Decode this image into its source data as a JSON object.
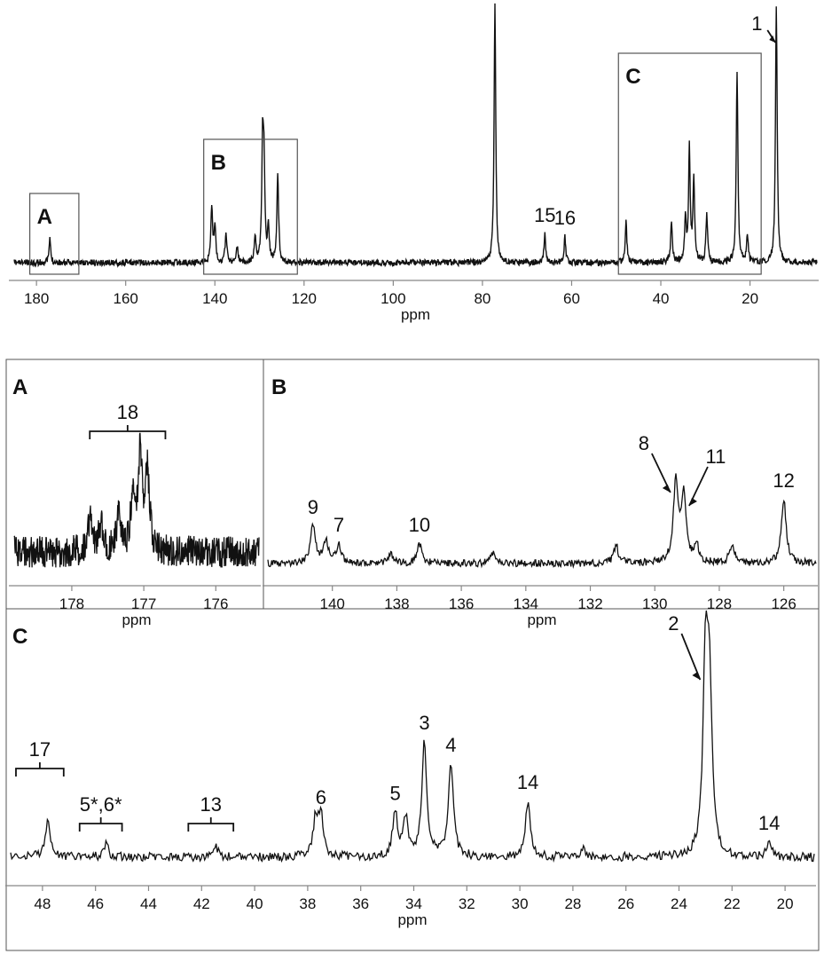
{
  "chart_data": [
    {
      "id": "full",
      "type": "line",
      "title": "",
      "xlabel": "ppm",
      "ylabel": "",
      "xlim": [
        185,
        5
      ],
      "reversed_x": true,
      "ticks": [
        "180",
        "160",
        "140",
        "120",
        "100",
        "80",
        "60",
        "40",
        "20"
      ],
      "tick_values": [
        180,
        160,
        140,
        120,
        100,
        80,
        60,
        40,
        20
      ],
      "peaks": [
        {
          "ppm": 177.0,
          "h": 0.09
        },
        {
          "ppm": 140.7,
          "h": 0.22
        },
        {
          "ppm": 140.0,
          "h": 0.14
        },
        {
          "ppm": 137.5,
          "h": 0.12
        },
        {
          "ppm": 135.0,
          "h": 0.06
        },
        {
          "ppm": 131.0,
          "h": 0.1
        },
        {
          "ppm": 129.3,
          "h": 0.42
        },
        {
          "ppm": 129.0,
          "h": 0.36
        },
        {
          "ppm": 128.0,
          "h": 0.14
        },
        {
          "ppm": 125.9,
          "h": 0.35
        },
        {
          "ppm": 77.2,
          "h": 1.0
        },
        {
          "ppm": 66.0,
          "h": 0.11
        },
        {
          "ppm": 61.5,
          "h": 0.1
        },
        {
          "ppm": 47.8,
          "h": 0.16
        },
        {
          "ppm": 37.6,
          "h": 0.16
        },
        {
          "ppm": 34.5,
          "h": 0.17
        },
        {
          "ppm": 33.6,
          "h": 0.44
        },
        {
          "ppm": 32.6,
          "h": 0.33
        },
        {
          "ppm": 29.7,
          "h": 0.19
        },
        {
          "ppm": 22.9,
          "h": 0.75
        },
        {
          "ppm": 20.6,
          "h": 0.11
        },
        {
          "ppm": 14.1,
          "h": 1.0
        }
      ],
      "labels": [
        {
          "text": "15",
          "ppm": 66.0
        },
        {
          "text": "16",
          "ppm": 61.5
        },
        {
          "text": "1",
          "ppm": 14.1
        }
      ],
      "regions": [
        {
          "letter": "A",
          "from": 181.5,
          "to": 170.5
        },
        {
          "letter": "B",
          "from": 142.5,
          "to": 121.5
        },
        {
          "letter": "C",
          "from": 49.5,
          "to": 17.5
        }
      ]
    },
    {
      "id": "A",
      "type": "line",
      "title": "A",
      "xlabel": "ppm",
      "xlim": [
        178.8,
        175.4
      ],
      "reversed_x": true,
      "ticks": [
        "178",
        "177",
        "176"
      ],
      "tick_values": [
        178,
        177,
        176
      ],
      "peaks": [
        {
          "ppm": 177.75,
          "h": 0.3
        },
        {
          "ppm": 177.6,
          "h": 0.25
        },
        {
          "ppm": 177.35,
          "h": 0.3
        },
        {
          "ppm": 177.15,
          "h": 0.55
        },
        {
          "ppm": 177.05,
          "h": 0.85
        },
        {
          "ppm": 176.95,
          "h": 0.7
        }
      ],
      "labels": [
        {
          "text": "18",
          "bracket": [
            177.75,
            176.7
          ]
        }
      ]
    },
    {
      "id": "B",
      "type": "line",
      "title": "B",
      "xlabel": "ppm",
      "xlim": [
        142.0,
        125.0
      ],
      "reversed_x": true,
      "ticks": [
        "140",
        "138",
        "136",
        "134",
        "132",
        "130",
        "128",
        "126"
      ],
      "tick_values": [
        140,
        138,
        136,
        134,
        132,
        130,
        128,
        126
      ],
      "peaks": [
        {
          "ppm": 140.6,
          "h": 0.42
        },
        {
          "ppm": 140.2,
          "h": 0.25
        },
        {
          "ppm": 139.8,
          "h": 0.22
        },
        {
          "ppm": 138.2,
          "h": 0.1
        },
        {
          "ppm": 137.3,
          "h": 0.22
        },
        {
          "ppm": 135.0,
          "h": 0.12
        },
        {
          "ppm": 131.2,
          "h": 0.2
        },
        {
          "ppm": 129.35,
          "h": 0.9
        },
        {
          "ppm": 129.1,
          "h": 0.75
        },
        {
          "ppm": 128.7,
          "h": 0.18
        },
        {
          "ppm": 127.6,
          "h": 0.22
        },
        {
          "ppm": 126.0,
          "h": 0.72
        }
      ],
      "labels": [
        {
          "text": "9",
          "ppm": 140.6
        },
        {
          "text": "7",
          "ppm": 139.8
        },
        {
          "text": "10",
          "ppm": 137.3
        },
        {
          "text": "8",
          "ppm": 129.35,
          "arrow": true
        },
        {
          "text": "11",
          "ppm": 129.1,
          "arrow": true
        },
        {
          "text": "12",
          "ppm": 126.0
        }
      ]
    },
    {
      "id": "C",
      "type": "line",
      "title": "C",
      "xlabel": "ppm",
      "xlim": [
        49.2,
        18.9
      ],
      "reversed_x": true,
      "ticks": [
        "48",
        "46",
        "44",
        "42",
        "40",
        "38",
        "36",
        "34",
        "32",
        "30",
        "28",
        "26",
        "24",
        "22",
        "20"
      ],
      "tick_values": [
        48,
        46,
        44,
        42,
        40,
        38,
        36,
        34,
        32,
        30,
        28,
        26,
        24,
        22,
        20
      ],
      "peaks": [
        {
          "ppm": 47.8,
          "h": 0.2
        },
        {
          "ppm": 45.6,
          "h": 0.07
        },
        {
          "ppm": 41.5,
          "h": 0.07
        },
        {
          "ppm": 37.7,
          "h": 0.2
        },
        {
          "ppm": 37.5,
          "h": 0.22
        },
        {
          "ppm": 34.7,
          "h": 0.24
        },
        {
          "ppm": 34.3,
          "h": 0.2
        },
        {
          "ppm": 33.6,
          "h": 0.62
        },
        {
          "ppm": 32.6,
          "h": 0.5
        },
        {
          "ppm": 29.7,
          "h": 0.3
        },
        {
          "ppm": 27.6,
          "h": 0.05
        },
        {
          "ppm": 23.0,
          "h": 1.0
        },
        {
          "ppm": 22.85,
          "h": 0.85
        },
        {
          "ppm": 20.6,
          "h": 0.08
        }
      ],
      "labels": [
        {
          "text": "17",
          "bracket": [
            49.0,
            47.2
          ]
        },
        {
          "text": "5*,6*",
          "bracket": [
            46.6,
            45.0
          ]
        },
        {
          "text": "13",
          "bracket": [
            42.5,
            40.8
          ]
        },
        {
          "text": "6",
          "ppm": 37.5
        },
        {
          "text": "5",
          "ppm": 34.7
        },
        {
          "text": "3",
          "ppm": 33.6
        },
        {
          "text": "4",
          "ppm": 32.6
        },
        {
          "text": "14",
          "ppm": 29.7
        },
        {
          "text": "2",
          "ppm": 23.0,
          "arrow": true
        },
        {
          "text": "14",
          "ppm": 20.6
        }
      ]
    }
  ]
}
